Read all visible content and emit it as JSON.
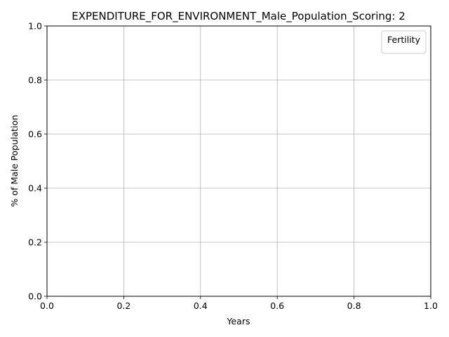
{
  "chart_data": {
    "type": "line",
    "title": "EXPENDITURE_FOR_ENVIRONMENT_Male_Population_Scoring: 2",
    "xlabel": "Years",
    "ylabel": "% of Male Population",
    "xlim": [
      0.0,
      1.0
    ],
    "ylim": [
      0.0,
      1.0
    ],
    "x_ticks": [
      "0.0",
      "0.2",
      "0.4",
      "0.6",
      "0.8",
      "1.0"
    ],
    "y_ticks": [
      "0.0",
      "0.2",
      "0.4",
      "0.6",
      "0.8",
      "1.0"
    ],
    "grid": true,
    "legend": {
      "title": "Fertility",
      "placement": "top-right",
      "entries": []
    },
    "series": []
  }
}
